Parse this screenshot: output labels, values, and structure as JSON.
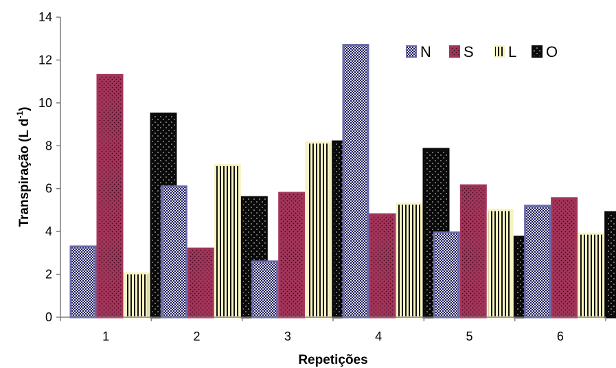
{
  "chart_data": {
    "type": "bar",
    "xlabel": "Repetições",
    "ylabel_main": "Transpiração (L d",
    "ylabel_sup": "-1",
    "ylabel_close": ")",
    "ylim": [
      0,
      14
    ],
    "yticks": [
      0,
      2,
      4,
      6,
      8,
      10,
      12,
      14
    ],
    "categories": [
      "1",
      "2",
      "3",
      "4",
      "5",
      "6"
    ],
    "series": [
      {
        "name": "N",
        "values": [
          3.3,
          6.1,
          2.6,
          12.7,
          3.95,
          5.2
        ],
        "color": "#6b6aa8",
        "pattern": "checker"
      },
      {
        "name": "S",
        "values": [
          11.3,
          3.2,
          5.8,
          4.8,
          6.15,
          5.55
        ],
        "color": "#a3355a",
        "pattern": "dots"
      },
      {
        "name": "L",
        "values": [
          2.05,
          7.1,
          8.15,
          5.3,
          5.0,
          3.9
        ],
        "color": "#f7f3c2",
        "pattern": "vstripes"
      },
      {
        "name": "O",
        "values": [
          9.5,
          5.6,
          8.2,
          7.85,
          3.75,
          4.9
        ],
        "color": "#0a0a0a",
        "pattern": "sparse-dots"
      }
    ],
    "grid": false,
    "legend_position": "top-right"
  }
}
